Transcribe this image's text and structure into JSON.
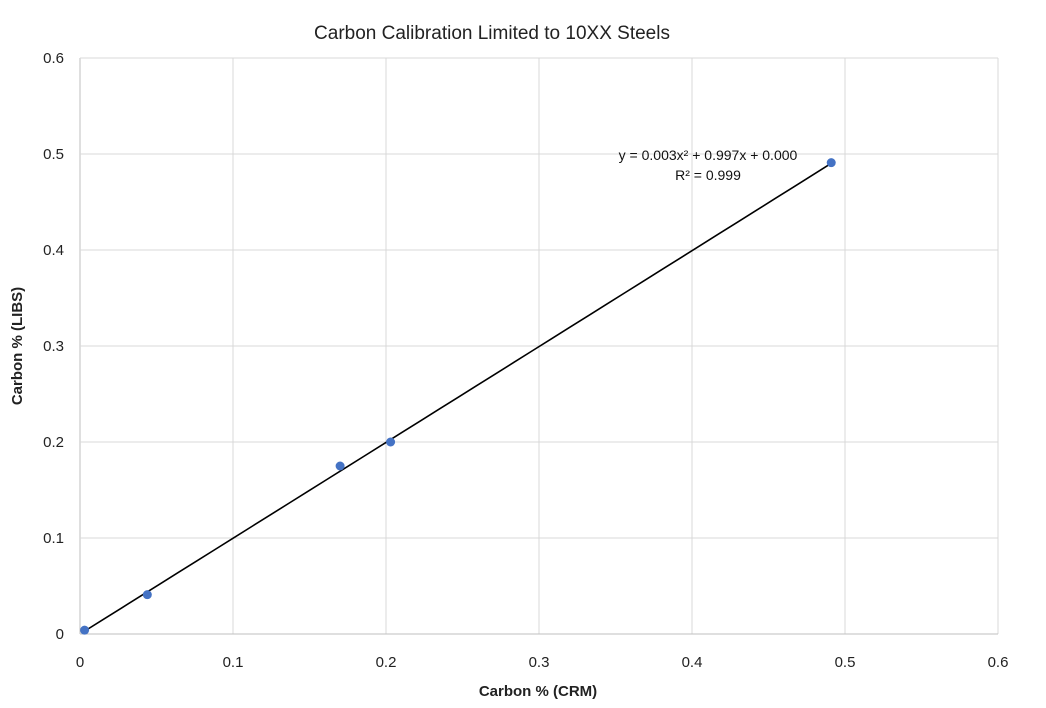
{
  "chart_data": {
    "type": "scatter",
    "title": "Carbon Calibration Limited to 10XX Steels",
    "xlabel": "Carbon % (CRM)",
    "ylabel": "Carbon % (LIBS)",
    "xlim": [
      0,
      0.6
    ],
    "ylim": [
      0,
      0.6
    ],
    "xticks": [
      "0",
      "0.1",
      "0.2",
      "0.3",
      "0.4",
      "0.5",
      "0.6"
    ],
    "yticks": [
      "0",
      "0.1",
      "0.2",
      "0.3",
      "0.4",
      "0.5",
      "0.6"
    ],
    "grid": true,
    "legend": "none",
    "series": [
      {
        "x": [
          0.003,
          0.044,
          0.17,
          0.203,
          0.491
        ],
        "y": [
          0.004,
          0.041,
          0.175,
          0.2,
          0.491
        ],
        "color": "#4472c4"
      }
    ],
    "trendline": {
      "type": "polynomial",
      "coefficients": [
        0.003,
        0.997,
        0.0
      ],
      "x_range": [
        0.003,
        0.491
      ],
      "color": "#000000",
      "equation_label": "y = 0.003x² + 0.997x + 0.000",
      "r2_label": "R² = 0.999"
    }
  }
}
